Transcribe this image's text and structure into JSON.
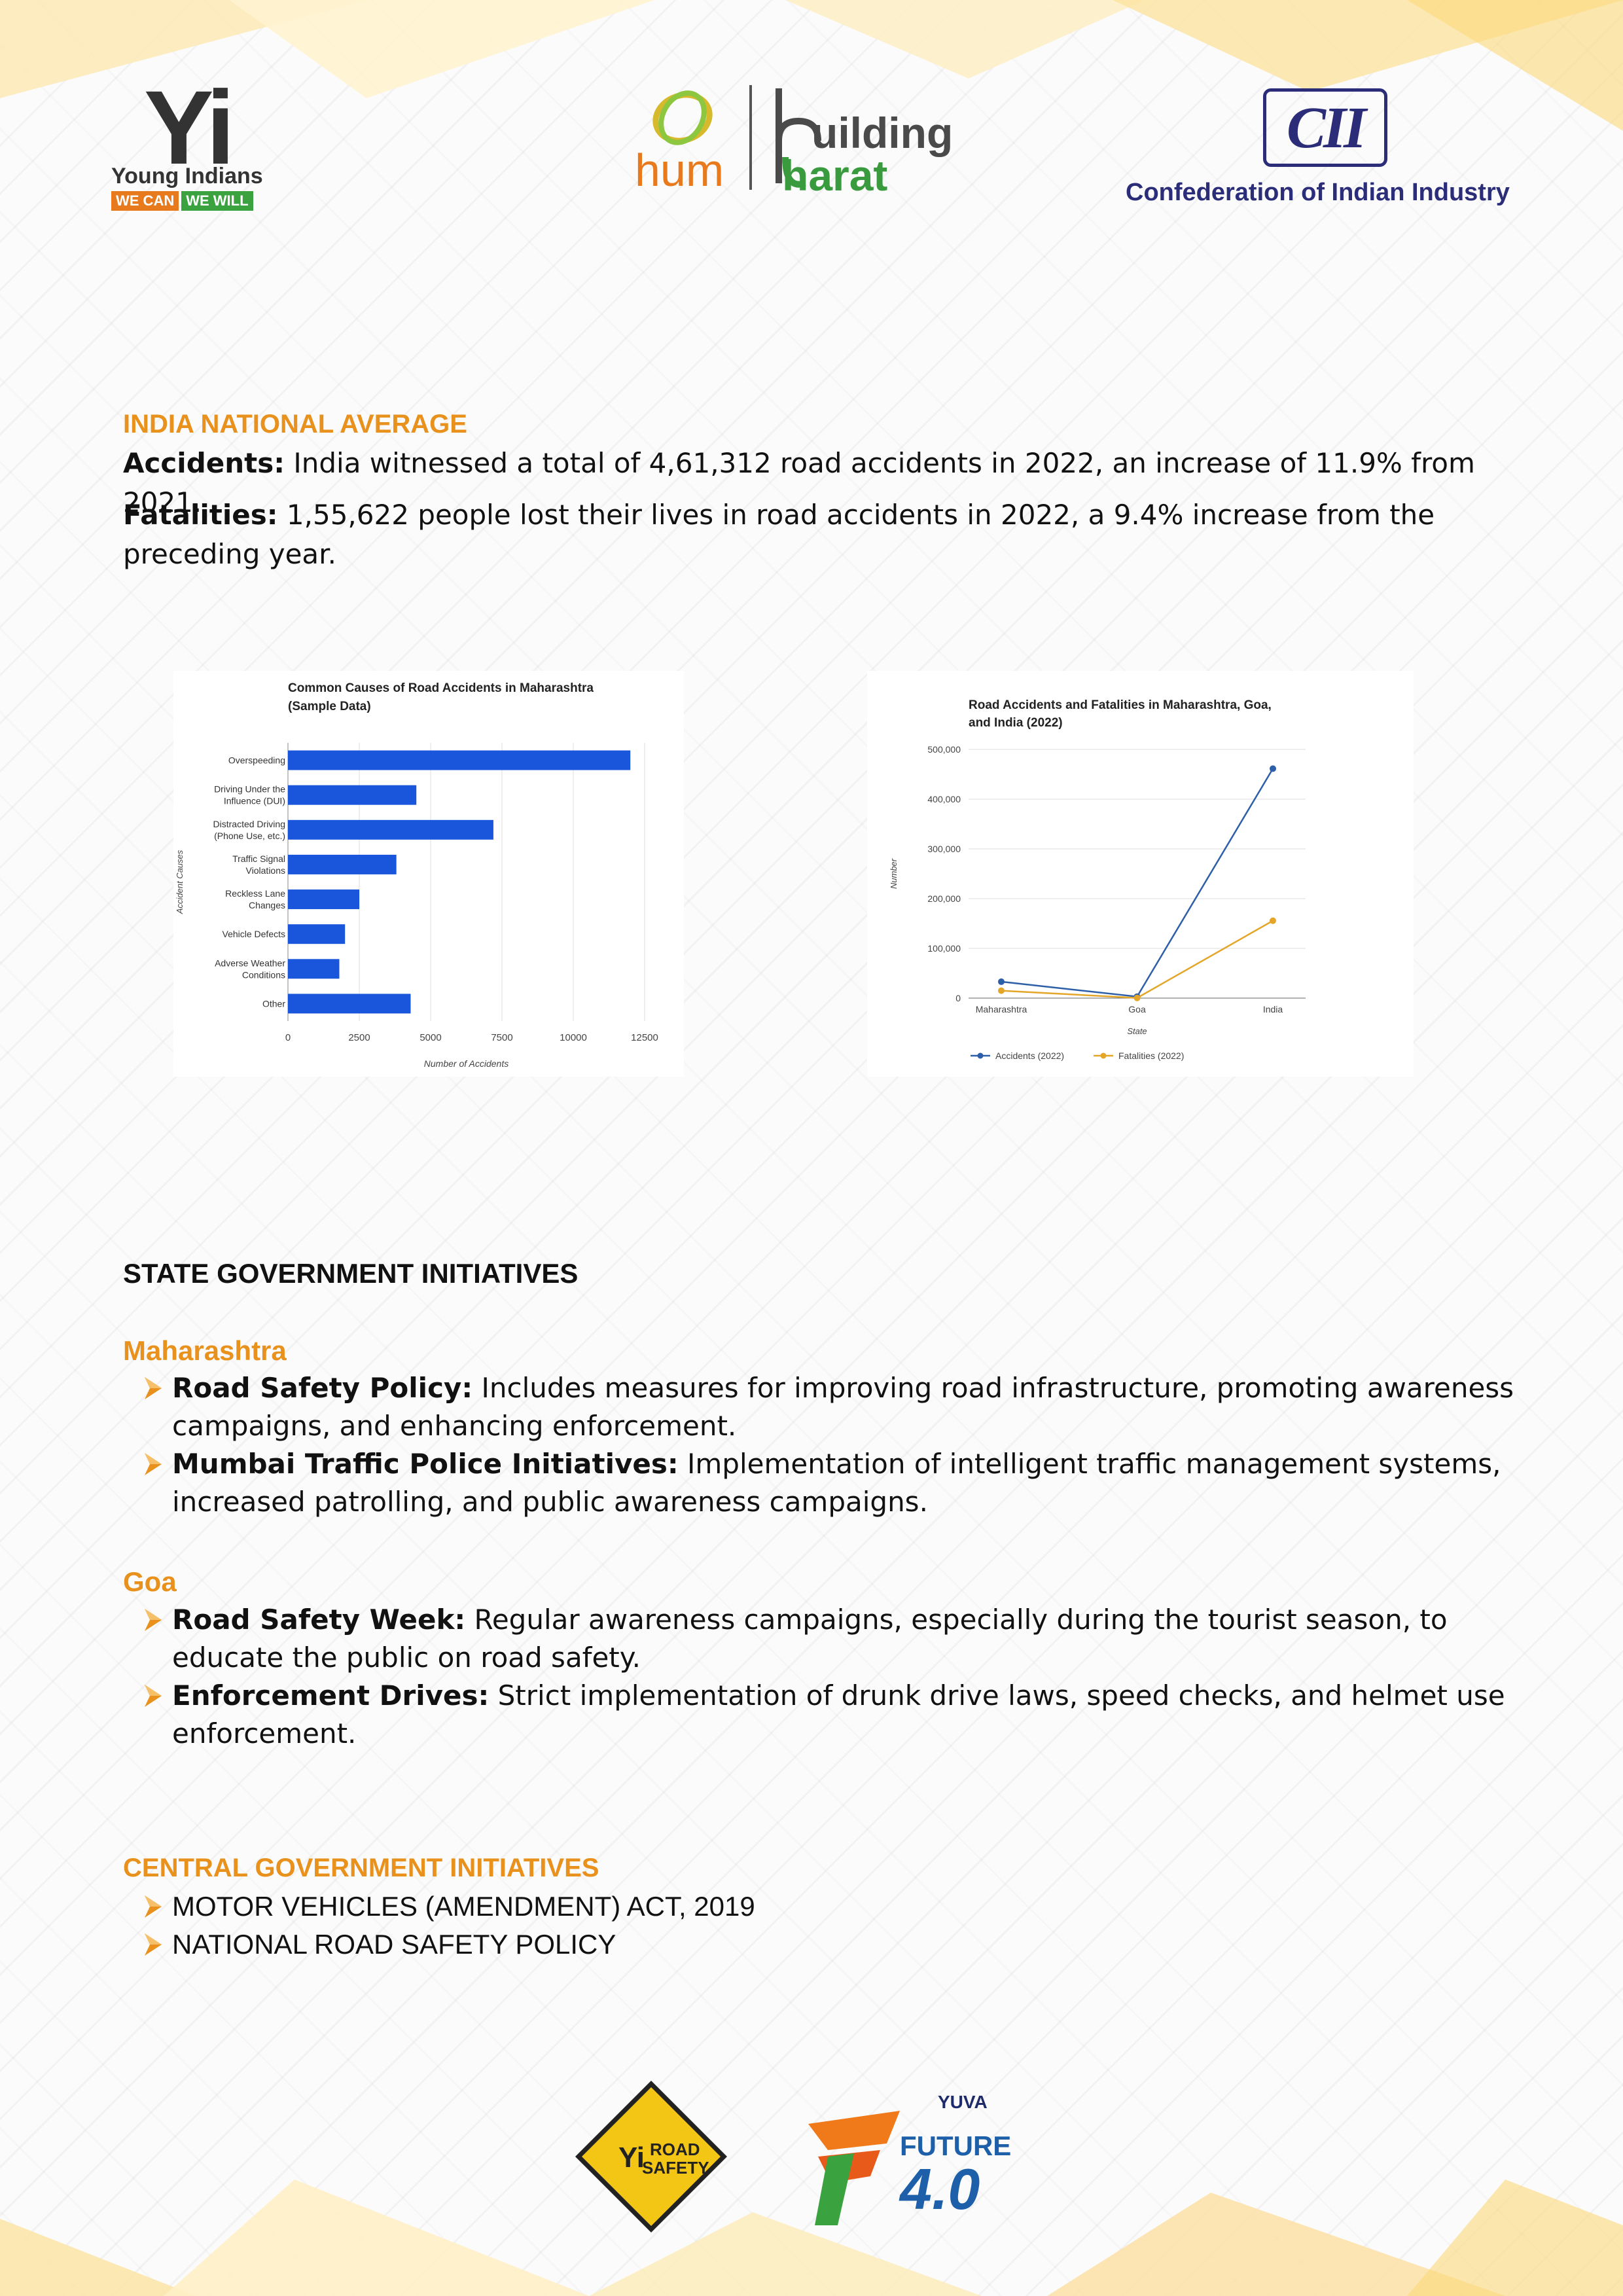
{
  "header": {
    "yi_logo": {
      "letters": "Yi",
      "name": "Young Indians",
      "tag_left": "WE CAN",
      "tag_right": "WE WILL"
    },
    "hbb_logo": {
      "left": "hum",
      "right_top": "uilding",
      "right_bottom": "harat"
    },
    "cii_logo": {
      "mark": "CII",
      "name": "Confederation of Indian Industry"
    }
  },
  "national": {
    "title": "INDIA NATIONAL AVERAGE",
    "accidents_label": "Accidents:",
    "accidents_text": " India witnessed a total of 4,61,312 road accidents in 2022, an increase of 11.9% from 2021.",
    "fatalities_label": "Fatalities:",
    "fatalities_text": " 1,55,622 people lost their lives in road accidents in 2022, a 9.4% increase from the preceding year."
  },
  "chart_data": [
    {
      "type": "bar",
      "orientation": "horizontal",
      "title": "Common Causes of Road Accidents in Maharashtra (Sample Data)",
      "title_lines": [
        "Common Causes of Road Accidents in Maharashtra",
        "(Sample Data)"
      ],
      "xlabel": "Number of Accidents",
      "ylabel": "Accident Causes",
      "categories": [
        "Overspeeding",
        "Driving Under the Influence (DUI)",
        "Distracted Driving (Phone Use, etc.)",
        "Traffic Signal Violations",
        "Reckless Lane Changes",
        "Vehicle Defects",
        "Adverse Weather Conditions",
        "Other"
      ],
      "category_lines": [
        [
          "Overspeeding"
        ],
        [
          "Driving Under the",
          "Influence (DUI)"
        ],
        [
          "Distracted Driving",
          "(Phone Use, etc.)"
        ],
        [
          "Traffic Signal",
          "Violations"
        ],
        [
          "Reckless Lane",
          "Changes"
        ],
        [
          "Vehicle Defects"
        ],
        [
          "Adverse Weather",
          "Conditions"
        ],
        [
          "Other"
        ]
      ],
      "values": [
        12000,
        4500,
        7200,
        3800,
        2500,
        2000,
        1800,
        4300
      ],
      "xlim": [
        0,
        12500
      ],
      "xticks": [
        0,
        2500,
        5000,
        7500,
        10000,
        12500
      ],
      "grid": true,
      "color": "#1a56db"
    },
    {
      "type": "line",
      "title": "Road Accidents and Fatalities in Maharashtra, Goa, and India (2022)",
      "title_lines": [
        "Road Accidents and Fatalities in Maharashtra, Goa,",
        "and India (2022)"
      ],
      "xlabel": "State",
      "ylabel": "Number",
      "categories": [
        "Maharashtra",
        "Goa",
        "India"
      ],
      "series": [
        {
          "name": "Accidents (2022)",
          "values": [
            33000,
            3000,
            461312
          ],
          "color": "#2d5fa8"
        },
        {
          "name": "Fatalities (2022)",
          "values": [
            15000,
            300,
            155622
          ],
          "color": "#e3a629"
        }
      ],
      "ylim": [
        0,
        500000
      ],
      "yticks": [
        "0",
        "100,000",
        "200,000",
        "300,000",
        "400,000",
        "500,000"
      ],
      "legend_position": "bottom",
      "grid": true
    }
  ],
  "state": {
    "title": "STATE GOVERNMENT INITIATIVES",
    "maharashtra": {
      "title": "Maharashtra",
      "items": [
        {
          "label": "Road Safety Policy:",
          "text": " Includes measures for improving road infrastructure, promoting awareness campaigns, and enhancing enforcement."
        },
        {
          "label": "Mumbai Traffic Police Initiatives:",
          "text": " Implementation of intelligent traffic management systems, increased patrolling, and public awareness campaigns."
        }
      ]
    },
    "goa": {
      "title": "Goa",
      "items": [
        {
          "label": "Road Safety Week:",
          "text": " Regular awareness campaigns, especially during the tourist season, to educate the public on road safety."
        },
        {
          "label": "Enforcement Drives:",
          "text": " Strict implementation of drunk drive laws, speed checks, and helmet use enforcement."
        }
      ]
    }
  },
  "central": {
    "title": "CENTRAL GOVERNMENT INITIATIVES",
    "items": [
      " MOTOR VEHICLES (AMENDMENT) ACT, 2019",
      "NATIONAL ROAD SAFETY POLICY"
    ]
  },
  "footer": {
    "road_safety": {
      "mark": "Yi",
      "line1": "ROAD",
      "line2": "SAFETY"
    },
    "future": {
      "brand": "YUVA",
      "word": "FUTURE",
      "version": "4.0"
    }
  },
  "colors": {
    "accent_orange": "#e8911c",
    "cii_navy": "#2b2d79",
    "bar_blue": "#1a56db"
  }
}
